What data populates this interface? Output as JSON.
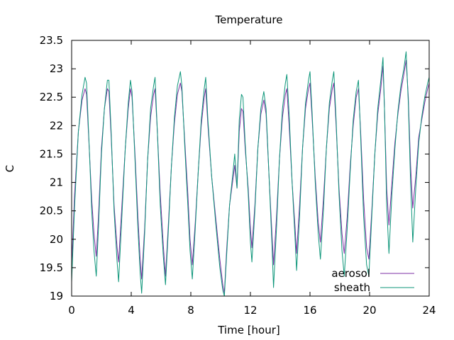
{
  "chart_data": {
    "type": "line",
    "title": "Temperature",
    "xlabel": "Time [hour]",
    "ylabel": "C",
    "xlim": [
      0,
      24
    ],
    "ylim": [
      19,
      23.5
    ],
    "xticks": [
      0,
      4,
      8,
      12,
      16,
      20,
      24
    ],
    "xtick_labels": [
      "0",
      "4",
      "8",
      "12",
      "16",
      "20",
      "24"
    ],
    "yticks": [
      19,
      19.5,
      20,
      20.5,
      21,
      21.5,
      22,
      22.5,
      23,
      23.5
    ],
    "ytick_labels": [
      "19",
      "19.5",
      "20",
      "20.5",
      "21",
      "21.5",
      "22",
      "22.5",
      "23",
      "23.5"
    ],
    "grid": false,
    "legend": "bottom-right",
    "series": [
      {
        "name": "aerosol",
        "color": "#7e2fa4",
        "points": [
          [
            0.0,
            19.55
          ],
          [
            0.2,
            20.8
          ],
          [
            0.45,
            21.9
          ],
          [
            0.7,
            22.45
          ],
          [
            0.9,
            22.65
          ],
          [
            1.0,
            22.55
          ],
          [
            1.2,
            21.5
          ],
          [
            1.35,
            20.7
          ],
          [
            1.5,
            20.1
          ],
          [
            1.65,
            19.7
          ],
          [
            1.8,
            20.4
          ],
          [
            2.0,
            21.6
          ],
          [
            2.2,
            22.3
          ],
          [
            2.4,
            22.65
          ],
          [
            2.5,
            22.6
          ],
          [
            2.65,
            21.8
          ],
          [
            2.85,
            20.6
          ],
          [
            3.05,
            19.85
          ],
          [
            3.15,
            19.6
          ],
          [
            3.35,
            20.5
          ],
          [
            3.6,
            21.6
          ],
          [
            3.8,
            22.3
          ],
          [
            3.95,
            22.65
          ],
          [
            4.05,
            22.5
          ],
          [
            4.25,
            21.5
          ],
          [
            4.45,
            20.4
          ],
          [
            4.6,
            19.65
          ],
          [
            4.7,
            19.3
          ],
          [
            4.9,
            20.2
          ],
          [
            5.1,
            21.4
          ],
          [
            5.3,
            22.15
          ],
          [
            5.5,
            22.55
          ],
          [
            5.6,
            22.65
          ],
          [
            5.75,
            21.9
          ],
          [
            5.95,
            20.8
          ],
          [
            6.15,
            19.9
          ],
          [
            6.3,
            19.35
          ],
          [
            6.5,
            20.3
          ],
          [
            6.7,
            21.3
          ],
          [
            6.9,
            22.05
          ],
          [
            7.1,
            22.55
          ],
          [
            7.3,
            22.75
          ],
          [
            7.4,
            22.6
          ],
          [
            7.6,
            21.7
          ],
          [
            7.8,
            20.8
          ],
          [
            7.95,
            20.0
          ],
          [
            8.1,
            19.55
          ],
          [
            8.3,
            20.3
          ],
          [
            8.5,
            21.2
          ],
          [
            8.7,
            22.0
          ],
          [
            8.9,
            22.5
          ],
          [
            9.0,
            22.65
          ],
          [
            9.15,
            22.0
          ],
          [
            9.4,
            21.1
          ],
          [
            9.7,
            20.3
          ],
          [
            9.95,
            19.65
          ],
          [
            10.15,
            19.2
          ],
          [
            10.25,
            19.05
          ],
          [
            10.4,
            19.8
          ],
          [
            10.6,
            20.6
          ],
          [
            10.8,
            21.0
          ],
          [
            10.95,
            21.3
          ],
          [
            11.1,
            20.9
          ],
          [
            11.25,
            21.9
          ],
          [
            11.4,
            22.3
          ],
          [
            11.5,
            22.25
          ],
          [
            11.65,
            21.6
          ],
          [
            11.85,
            20.9
          ],
          [
            12.0,
            20.2
          ],
          [
            12.1,
            19.85
          ],
          [
            12.3,
            20.6
          ],
          [
            12.5,
            21.6
          ],
          [
            12.7,
            22.2
          ],
          [
            12.9,
            22.45
          ],
          [
            13.05,
            22.2
          ],
          [
            13.25,
            21.1
          ],
          [
            13.45,
            20.1
          ],
          [
            13.55,
            19.55
          ],
          [
            13.75,
            20.4
          ],
          [
            13.95,
            21.4
          ],
          [
            14.15,
            22.15
          ],
          [
            14.35,
            22.55
          ],
          [
            14.45,
            22.65
          ],
          [
            14.6,
            22.0
          ],
          [
            14.8,
            21.0
          ],
          [
            15.0,
            20.2
          ],
          [
            15.1,
            19.75
          ],
          [
            15.3,
            20.6
          ],
          [
            15.5,
            21.6
          ],
          [
            15.7,
            22.3
          ],
          [
            15.9,
            22.65
          ],
          [
            16.0,
            22.75
          ],
          [
            16.15,
            22.1
          ],
          [
            16.35,
            21.1
          ],
          [
            16.55,
            20.3
          ],
          [
            16.7,
            19.95
          ],
          [
            16.9,
            20.7
          ],
          [
            17.1,
            21.6
          ],
          [
            17.3,
            22.3
          ],
          [
            17.5,
            22.65
          ],
          [
            17.6,
            22.75
          ],
          [
            17.75,
            22.0
          ],
          [
            17.95,
            20.9
          ],
          [
            18.15,
            20.1
          ],
          [
            18.3,
            19.75
          ],
          [
            18.5,
            20.4
          ],
          [
            18.7,
            21.3
          ],
          [
            18.9,
            22.0
          ],
          [
            19.1,
            22.5
          ],
          [
            19.25,
            22.65
          ],
          [
            19.4,
            21.9
          ],
          [
            19.6,
            20.7
          ],
          [
            19.8,
            19.85
          ],
          [
            19.95,
            19.65
          ],
          [
            20.15,
            20.5
          ],
          [
            20.35,
            21.5
          ],
          [
            20.55,
            22.2
          ],
          [
            20.75,
            22.65
          ],
          [
            20.9,
            23.05
          ],
          [
            21.0,
            22.3
          ],
          [
            21.15,
            20.9
          ],
          [
            21.3,
            20.25
          ],
          [
            21.5,
            21.0
          ],
          [
            21.7,
            21.7
          ],
          [
            21.9,
            22.2
          ],
          [
            22.1,
            22.6
          ],
          [
            22.3,
            22.9
          ],
          [
            22.45,
            23.15
          ],
          [
            22.6,
            22.5
          ],
          [
            22.75,
            21.3
          ],
          [
            22.9,
            20.55
          ],
          [
            23.1,
            21.1
          ],
          [
            23.3,
            21.8
          ],
          [
            23.5,
            22.1
          ],
          [
            23.7,
            22.4
          ],
          [
            23.9,
            22.65
          ],
          [
            24.0,
            22.75
          ]
        ]
      },
      {
        "name": "sheath",
        "color": "#0e967a",
        "points": [
          [
            0.0,
            19.25
          ],
          [
            0.2,
            20.6
          ],
          [
            0.45,
            21.9
          ],
          [
            0.7,
            22.55
          ],
          [
            0.9,
            22.85
          ],
          [
            1.0,
            22.75
          ],
          [
            1.2,
            21.5
          ],
          [
            1.35,
            20.5
          ],
          [
            1.5,
            19.8
          ],
          [
            1.65,
            19.35
          ],
          [
            1.8,
            20.2
          ],
          [
            2.0,
            21.5
          ],
          [
            2.2,
            22.3
          ],
          [
            2.4,
            22.8
          ],
          [
            2.5,
            22.8
          ],
          [
            2.65,
            21.9
          ],
          [
            2.85,
            20.5
          ],
          [
            3.05,
            19.6
          ],
          [
            3.15,
            19.25
          ],
          [
            3.35,
            20.3
          ],
          [
            3.6,
            21.6
          ],
          [
            3.8,
            22.4
          ],
          [
            3.95,
            22.8
          ],
          [
            4.05,
            22.6
          ],
          [
            4.25,
            21.4
          ],
          [
            4.45,
            20.2
          ],
          [
            4.6,
            19.4
          ],
          [
            4.7,
            19.05
          ],
          [
            4.9,
            20.1
          ],
          [
            5.1,
            21.4
          ],
          [
            5.3,
            22.3
          ],
          [
            5.5,
            22.7
          ],
          [
            5.6,
            22.85
          ],
          [
            5.75,
            21.9
          ],
          [
            5.95,
            20.6
          ],
          [
            6.15,
            19.7
          ],
          [
            6.3,
            19.2
          ],
          [
            6.5,
            20.2
          ],
          [
            6.7,
            21.3
          ],
          [
            6.9,
            22.15
          ],
          [
            7.1,
            22.7
          ],
          [
            7.3,
            22.95
          ],
          [
            7.4,
            22.7
          ],
          [
            7.6,
            21.6
          ],
          [
            7.8,
            20.6
          ],
          [
            7.95,
            19.8
          ],
          [
            8.1,
            19.3
          ],
          [
            8.3,
            20.2
          ],
          [
            8.5,
            21.2
          ],
          [
            8.7,
            22.1
          ],
          [
            8.9,
            22.65
          ],
          [
            9.0,
            22.85
          ],
          [
            9.15,
            22.1
          ],
          [
            9.4,
            21.1
          ],
          [
            9.7,
            20.2
          ],
          [
            9.95,
            19.5
          ],
          [
            10.15,
            19.1
          ],
          [
            10.25,
            19.0
          ],
          [
            10.4,
            19.7
          ],
          [
            10.6,
            20.6
          ],
          [
            10.8,
            21.1
          ],
          [
            10.95,
            21.5
          ],
          [
            11.1,
            20.9
          ],
          [
            11.25,
            22.1
          ],
          [
            11.4,
            22.55
          ],
          [
            11.5,
            22.5
          ],
          [
            11.65,
            21.7
          ],
          [
            11.85,
            20.8
          ],
          [
            12.0,
            19.95
          ],
          [
            12.1,
            19.6
          ],
          [
            12.3,
            20.5
          ],
          [
            12.5,
            21.6
          ],
          [
            12.7,
            22.3
          ],
          [
            12.9,
            22.6
          ],
          [
            13.05,
            22.3
          ],
          [
            13.25,
            21.1
          ],
          [
            13.45,
            19.9
          ],
          [
            13.55,
            19.15
          ],
          [
            13.75,
            20.2
          ],
          [
            13.95,
            21.4
          ],
          [
            14.15,
            22.3
          ],
          [
            14.35,
            22.75
          ],
          [
            14.45,
            22.9
          ],
          [
            14.6,
            22.2
          ],
          [
            14.8,
            21.0
          ],
          [
            15.0,
            20.0
          ],
          [
            15.1,
            19.45
          ],
          [
            15.3,
            20.4
          ],
          [
            15.5,
            21.6
          ],
          [
            15.7,
            22.4
          ],
          [
            15.9,
            22.8
          ],
          [
            16.0,
            22.95
          ],
          [
            16.15,
            22.2
          ],
          [
            16.35,
            21.0
          ],
          [
            16.55,
            20.1
          ],
          [
            16.7,
            19.65
          ],
          [
            16.9,
            20.5
          ],
          [
            17.1,
            21.6
          ],
          [
            17.3,
            22.4
          ],
          [
            17.5,
            22.8
          ],
          [
            17.6,
            22.95
          ],
          [
            17.75,
            22.1
          ],
          [
            17.95,
            20.8
          ],
          [
            18.15,
            19.8
          ],
          [
            18.3,
            19.35
          ],
          [
            18.5,
            20.2
          ],
          [
            18.7,
            21.2
          ],
          [
            18.9,
            22.1
          ],
          [
            19.1,
            22.6
          ],
          [
            19.25,
            22.8
          ],
          [
            19.4,
            21.8
          ],
          [
            19.6,
            20.4
          ],
          [
            19.8,
            19.55
          ],
          [
            19.95,
            19.35
          ],
          [
            20.15,
            20.4
          ],
          [
            20.35,
            21.5
          ],
          [
            20.55,
            22.3
          ],
          [
            20.75,
            22.8
          ],
          [
            20.9,
            23.2
          ],
          [
            21.0,
            22.3
          ],
          [
            21.15,
            20.6
          ],
          [
            21.3,
            19.75
          ],
          [
            21.5,
            20.8
          ],
          [
            21.7,
            21.6
          ],
          [
            21.9,
            22.25
          ],
          [
            22.1,
            22.7
          ],
          [
            22.3,
            23.0
          ],
          [
            22.45,
            23.3
          ],
          [
            22.6,
            22.4
          ],
          [
            22.75,
            21.0
          ],
          [
            22.9,
            19.95
          ],
          [
            23.1,
            20.9
          ],
          [
            23.3,
            21.7
          ],
          [
            23.5,
            22.15
          ],
          [
            23.7,
            22.5
          ],
          [
            23.9,
            22.75
          ],
          [
            24.0,
            22.85
          ]
        ]
      }
    ]
  }
}
